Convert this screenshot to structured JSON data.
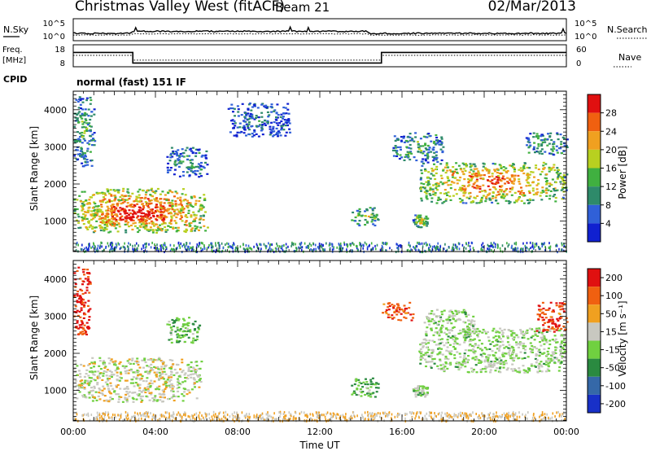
{
  "header": {
    "station": "Christmas Valley West (fitACF)",
    "beam": "Beam 21",
    "date": "02/Mar/2013"
  },
  "top_panels": {
    "noise": {
      "left_label": "N.Sky",
      "right_label": "N.Search",
      "left_ticks": [
        "10^5",
        "10^0"
      ],
      "right_ticks": [
        "10^5",
        "10^0"
      ]
    },
    "freq": {
      "left_label_1": "Freq.",
      "left_label_2": "[MHz]",
      "right_label": "Nave",
      "left_ticks": [
        "18",
        "8"
      ],
      "right_ticks": [
        "60",
        "0"
      ],
      "freq_series_MHz": [
        {
          "t0": 0,
          "t1": 2.9,
          "value": 14.5
        },
        {
          "t0": 2.9,
          "t1": 15.0,
          "value": 9.7
        },
        {
          "t0": 15.0,
          "t1": 24.0,
          "value": 14.5
        }
      ],
      "nave_series": [
        {
          "t0": 0,
          "t1": 2.9,
          "value": 31
        },
        {
          "t0": 2.9,
          "t1": 15.0,
          "value": 18
        },
        {
          "t0": 15.0,
          "t1": 24.0,
          "value": 31
        }
      ]
    },
    "cpid_label": "CPID",
    "cpid_value": "normal (fast) 151 IF"
  },
  "chart_data": [
    {
      "type": "heatmap",
      "name": "power",
      "ylabel": "Slant Range [km]",
      "xlabel": "",
      "xlim": [
        0,
        24
      ],
      "ylim": [
        180,
        4500
      ],
      "yticks": [
        "1000",
        "2000",
        "3000",
        "4000"
      ],
      "colorbar_label": "Power [dB]",
      "colorbar_ticks": [
        "4",
        "8",
        "12",
        "16",
        "20",
        "24",
        "28"
      ],
      "colors": [
        "#1020d0",
        "#3060d8",
        "#2e8a6a",
        "#40b040",
        "#b8d020",
        "#f0a020",
        "#f06010",
        "#e01010"
      ],
      "features": [
        {
          "t0": 0.0,
          "t1": 6.5,
          "r0": 700,
          "r1": 1900,
          "level": 0.8
        },
        {
          "t0": 1.0,
          "t1": 5.0,
          "r0": 900,
          "r1": 1600,
          "level": 0.95
        },
        {
          "t0": 16.8,
          "t1": 24.0,
          "r0": 1500,
          "r1": 2600,
          "level": 0.7
        },
        {
          "t0": 15.5,
          "t1": 18.0,
          "r0": 2600,
          "r1": 3400,
          "level": 0.35
        },
        {
          "t0": 13.5,
          "t1": 14.8,
          "r0": 900,
          "r1": 1400,
          "level": 0.45
        },
        {
          "t0": 16.5,
          "t1": 17.2,
          "r0": 850,
          "r1": 1200,
          "level": 0.5
        },
        {
          "t0": 4.5,
          "t1": 6.5,
          "r0": 2200,
          "r1": 3000,
          "level": 0.3
        },
        {
          "t0": 7.5,
          "t1": 10.5,
          "r0": 3300,
          "r1": 4200,
          "level": 0.2
        },
        {
          "t0": 0.0,
          "t1": 1.0,
          "r0": 2500,
          "r1": 4400,
          "level": 0.35
        },
        {
          "t0": 22.0,
          "t1": 24.0,
          "r0": 2800,
          "r1": 3400,
          "level": 0.35
        }
      ]
    },
    {
      "type": "heatmap",
      "name": "velocity",
      "ylabel": "Slant Range [km]",
      "xlabel": "Time UT",
      "xlim": [
        0,
        24
      ],
      "ylim": [
        180,
        4500
      ],
      "xticks": [
        "00:00",
        "04:00",
        "08:00",
        "12:00",
        "16:00",
        "20:00",
        "00:00"
      ],
      "yticks": [
        "1000",
        "2000",
        "3000",
        "4000"
      ],
      "colorbar_label": "Velocity [m s⁻¹]",
      "colorbar_ticks": [
        "200",
        "100",
        "50",
        "15",
        "-15",
        "-50",
        "-100",
        "-200"
      ],
      "colors": [
        "#1830c8",
        "#3568a8",
        "#2a8a40",
        "#70d040",
        "#c8c8c0",
        "#f0a020",
        "#f06010",
        "#e01010"
      ],
      "features": [
        {
          "t0": 0.0,
          "t1": 6.2,
          "r0": 700,
          "r1": 1900,
          "level": 0.55
        },
        {
          "t0": 16.8,
          "t1": 24.0,
          "r0": 1500,
          "r1": 2700,
          "level": 0.48
        },
        {
          "t0": 17.0,
          "t1": 19.5,
          "r0": 2500,
          "r1": 3200,
          "level": 0.48
        },
        {
          "t0": 13.5,
          "t1": 14.8,
          "r0": 850,
          "r1": 1350,
          "level": 0.4
        },
        {
          "t0": 16.5,
          "t1": 17.2,
          "r0": 850,
          "r1": 1150,
          "level": 0.48
        },
        {
          "t0": 0.0,
          "t1": 0.8,
          "r0": 2500,
          "r1": 4400,
          "level": 0.9
        },
        {
          "t0": 4.5,
          "t1": 6.2,
          "r0": 2300,
          "r1": 3000,
          "level": 0.4
        },
        {
          "t0": 15.0,
          "t1": 16.5,
          "r0": 2900,
          "r1": 3400,
          "level": 0.85
        },
        {
          "t0": 22.5,
          "t1": 24.0,
          "r0": 2600,
          "r1": 3400,
          "level": 0.85
        }
      ]
    }
  ]
}
